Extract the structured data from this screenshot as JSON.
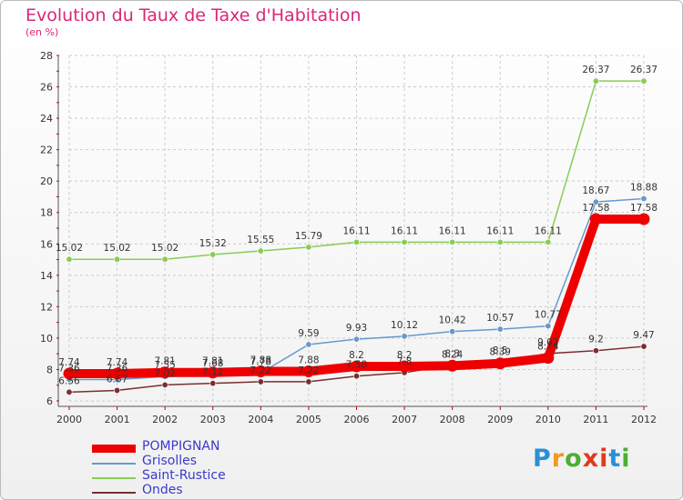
{
  "chart_data": {
    "type": "line",
    "title": "Evolution du Taux de Taxe d'Habitation",
    "subtitle": "(en %)",
    "x": [
      "2000",
      "2001",
      "2002",
      "2003",
      "2004",
      "2005",
      "2006",
      "2007",
      "2008",
      "2009",
      "2010",
      "2011",
      "2012"
    ],
    "yticks": [
      6,
      8,
      10,
      12,
      14,
      16,
      18,
      20,
      22,
      24,
      26,
      28
    ],
    "ylim": [
      6,
      28
    ],
    "legend_position": "bottom-left",
    "series": [
      {
        "name": "POMPIGNAN",
        "color": "#ee0000",
        "values": [
          7.74,
          7.74,
          7.81,
          7.81,
          7.88,
          7.88,
          8.2,
          8.2,
          8.24,
          8.39,
          8.74,
          17.58,
          17.58
        ],
        "labels": [
          "7.74",
          "7.74",
          "7.81",
          "7.81",
          "7.88",
          "7.88",
          "8.2",
          "8.2",
          "8.24",
          "8.39",
          "8.74",
          "17.58",
          "17.58"
        ]
      },
      {
        "name": "Grisolles",
        "color": "#6699cc",
        "values": [
          7.36,
          7.36,
          7.55,
          7.68,
          7.78,
          9.59,
          9.93,
          10.12,
          10.42,
          10.57,
          10.77,
          18.67,
          18.88
        ],
        "labels": [
          "7.36",
          "7.36",
          "7.55",
          "7.68",
          "7.78",
          "9.59",
          "9.93",
          "10.12",
          "10.42",
          "10.57",
          "10.77",
          "18.67",
          "18.88"
        ]
      },
      {
        "name": "Saint-Rustice",
        "color": "#88cc55",
        "values": [
          15.02,
          15.02,
          15.02,
          15.32,
          15.55,
          15.79,
          16.11,
          16.11,
          16.11,
          16.11,
          16.11,
          26.37,
          26.37
        ],
        "labels": [
          "15.02",
          "15.02",
          "15.02",
          "15.32",
          "15.55",
          "15.79",
          "16.11",
          "16.11",
          "16.11",
          "16.11",
          "16.11",
          "26.37",
          "26.37"
        ]
      },
      {
        "name": "Ondes",
        "color": "#7a2e2e",
        "values": [
          6.56,
          6.67,
          7.02,
          7.12,
          7.22,
          7.22,
          7.58,
          7.8,
          8.3,
          8.5,
          9.02,
          9.2,
          9.47
        ],
        "labels": [
          "6.56",
          "6.67",
          "7.02",
          "7.12",
          "7.22",
          "7.22",
          "7.58",
          "7.8",
          "8.3",
          "8.5",
          "9.02",
          "9.2",
          "9.47"
        ]
      }
    ]
  },
  "logo": {
    "text": "Proxiti",
    "colors": [
      "#2a8fd6",
      "#f29a1e",
      "#4caf2f",
      "#e2391c",
      "#e2391c",
      "#2a8fd6",
      "#4caf2f"
    ]
  }
}
